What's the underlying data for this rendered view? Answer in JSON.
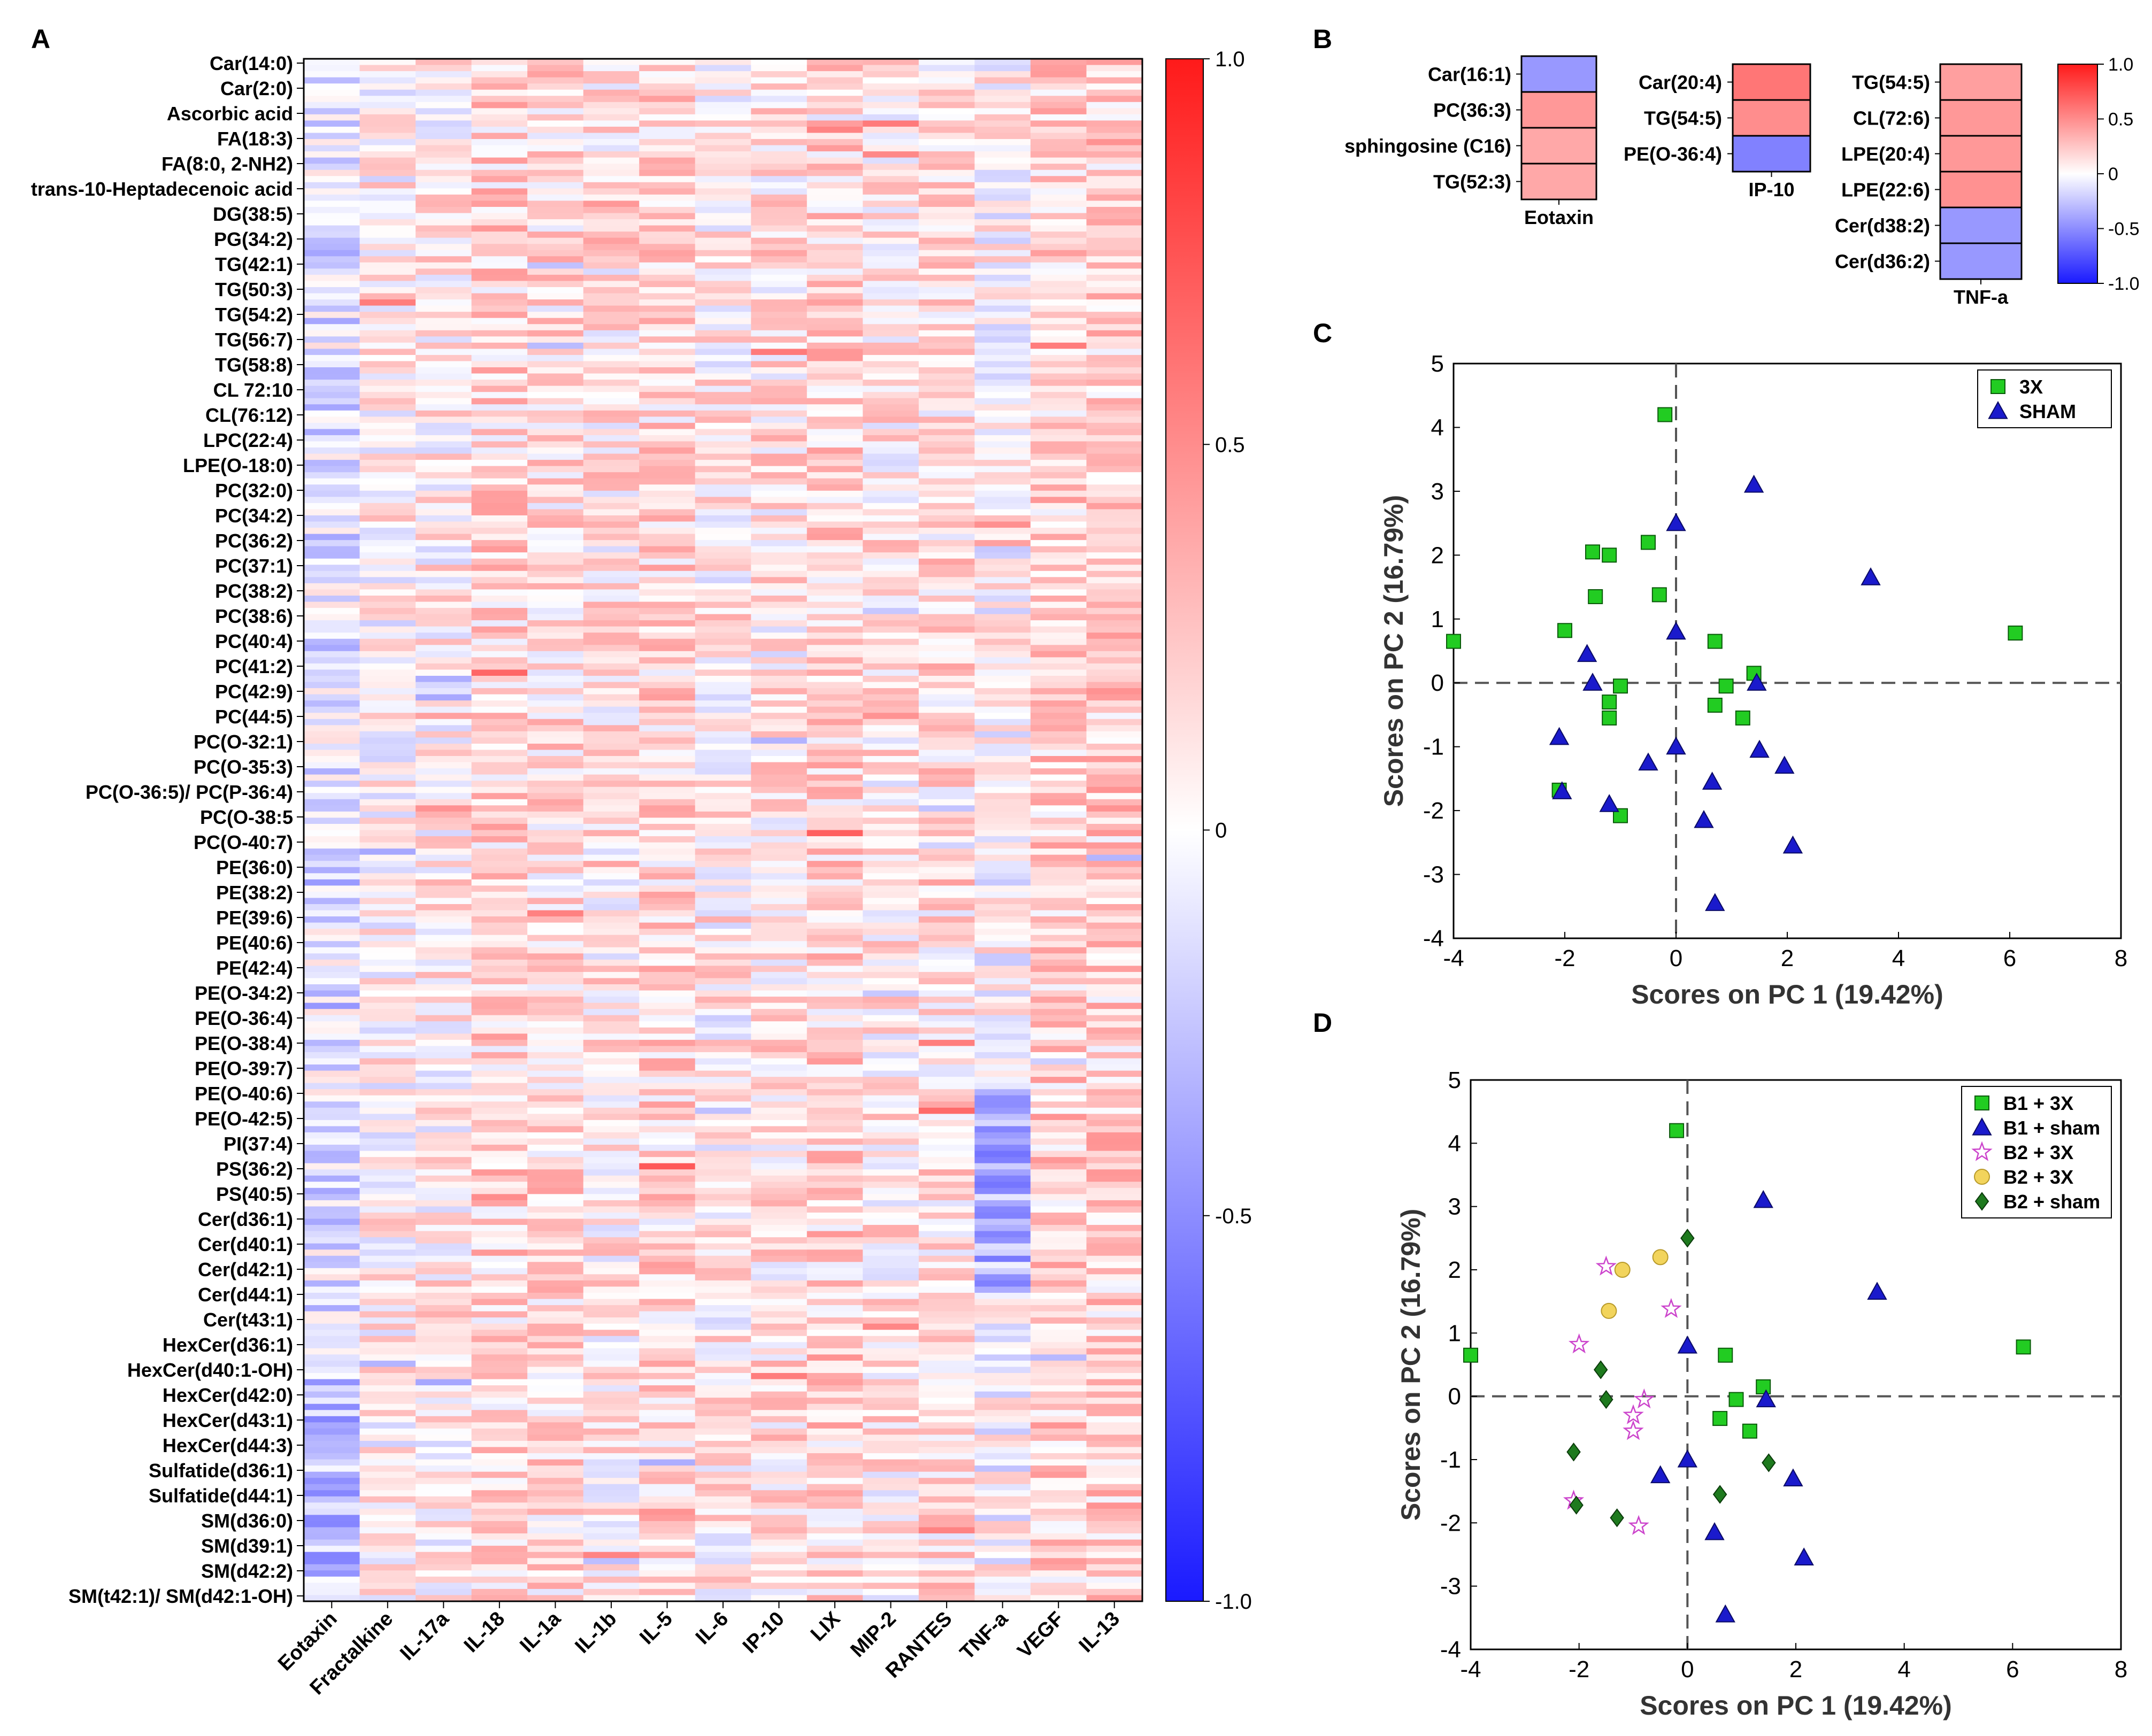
{
  "panels": {
    "A": "A",
    "B": "B",
    "C": "C",
    "D": "D"
  },
  "colors": {
    "neg": "#1a1aff",
    "mid": "#ffffff",
    "pos": "#ff1a1a",
    "green": "#22cc22",
    "blue": "#1a1acc",
    "pink": "#cc44cc",
    "yellow": "#f2d45c",
    "darkgreen": "#1e7a1e"
  },
  "chart_data": [
    {
      "panel": "A",
      "type": "heatmap",
      "title": "",
      "rows_labeled": [
        "Car(14:0)",
        "Car(2:0)",
        "Ascorbic acid",
        "FA(18:3)",
        "FA(8:0, 2-NH2)",
        "trans-10-Heptadecenoic acid",
        "DG(38:5)",
        "PG(34:2)",
        "TG(42:1)",
        "TG(50:3)",
        "TG(54:2)",
        "TG(56:7)",
        "TG(58:8)",
        "CL 72:10",
        "CL(76:12)",
        "LPC(22:4)",
        "LPE(O-18:0)",
        "PC(32:0)",
        "PC(34:2)",
        "PC(36:2)",
        "PC(37:1)",
        "PC(38:2)",
        "PC(38:6)",
        "PC(40:4)",
        "PC(41:2)",
        "PC(42:9)",
        "PC(44:5)",
        "PC(O-32:1)",
        "PC(O-35:3)",
        "PC(O-36:5)/ PC(P-36:4)",
        "PC(O-38:5",
        "PC(O-40:7)",
        "PE(36:0)",
        "PE(38:2)",
        "PE(39:6)",
        "PE(40:6)",
        "PE(42:4)",
        "PE(O-34:2)",
        "PE(O-36:4)",
        "PE(O-38:4)",
        "PE(O-39:7)",
        "PE(O-40:6)",
        "PE(O-42:5)",
        "PI(37:4)",
        "PS(36:2)",
        "PS(40:5)",
        "Cer(d36:1)",
        "Cer(d40:1)",
        "Cer(d42:1)",
        "Cer(d44:1)",
        "Cer(t43:1)",
        "HexCer(d36:1)",
        "HexCer(d40:1-OH)",
        "HexCer(d42:0)",
        "HexCer(d43:1)",
        "HexCer(d44:3)",
        "Sulfatide(d36:1)",
        "Sulfatide(d44:1)",
        "SM(d36:0)",
        "SM(d39:1)",
        "SM(d42:2)",
        "SM(t42:1)/ SM(d42:1-OH)"
      ],
      "columns": [
        "Eotaxin",
        "Fractalkine",
        "IL-17a",
        "IL-18",
        "IL-1a",
        "IL-1b",
        "IL-5",
        "IL-6",
        "IP-10",
        "LIX",
        "MIP-2",
        "RANTES",
        "TNF-a",
        "VEGF",
        "IL-13"
      ],
      "column_mean_bias": [
        -0.12,
        0.06,
        0.08,
        0.18,
        0.14,
        0.1,
        0.16,
        0.08,
        0.12,
        0.18,
        0.1,
        0.14,
        0.02,
        0.2,
        0.2
      ],
      "approx_total_rows": 250,
      "colorbar": {
        "ticks": [
          1.0,
          0.5,
          0,
          -0.5,
          -1.0
        ],
        "tick_labels": [
          "1.0",
          "0.5",
          "0",
          "-0.5",
          "-1.0"
        ],
        "range": [
          -1.0,
          1.0
        ]
      }
    },
    {
      "panel": "B",
      "type": "heatmap",
      "groups": [
        {
          "column": "Eotaxin",
          "rows": [
            "Car(16:1)",
            "PC(36:3)",
            "sphingosine (C16)",
            "TG(52:3)"
          ],
          "values": [
            -0.45,
            0.45,
            0.38,
            0.38
          ]
        },
        {
          "column": "IP-10",
          "rows": [
            "Car(20:4)",
            "TG(54:5)",
            "PE(O-36:4)"
          ],
          "values": [
            0.6,
            0.5,
            -0.55
          ]
        },
        {
          "column": "TNF-a",
          "rows": [
            "TG(54:5)",
            "CL(72:6)",
            "LPE(20:4)",
            "LPE(22:6)",
            "Cer(d38:2)",
            "Cer(d36:2)"
          ],
          "values": [
            0.42,
            0.45,
            0.45,
            0.48,
            -0.45,
            -0.45
          ]
        }
      ],
      "colorbar": {
        "ticks": [
          1.0,
          0.5,
          0,
          -0.5,
          -1.0
        ],
        "tick_labels": [
          "1.0",
          "0.5",
          "0",
          "-0.5",
          "-1.0"
        ],
        "range": [
          -1.0,
          1.0
        ]
      }
    },
    {
      "panel": "C",
      "type": "scatter",
      "xlabel": "Scores on PC 1 (19.42%)",
      "ylabel": "Scores on PC 2 (16.79%)",
      "xlim": [
        -4,
        8
      ],
      "ylim": [
        -4,
        5
      ],
      "xticks": [
        "-4",
        "-2",
        "0",
        "2",
        "4",
        "6",
        "8"
      ],
      "yticks": [
        "5",
        "4",
        "3",
        "2",
        "1",
        "0",
        "-1",
        "-2",
        "-3",
        "-4"
      ],
      "legend_position": "top-right",
      "series": [
        {
          "name": "3X",
          "marker": "square",
          "color": "#22cc22",
          "points": [
            [
              -0.2,
              4.2
            ],
            [
              -1.5,
              2.05
            ],
            [
              -1.2,
              2.0
            ],
            [
              -0.5,
              2.2
            ],
            [
              -1.45,
              1.35
            ],
            [
              -0.3,
              1.38
            ],
            [
              -2.0,
              0.82
            ],
            [
              -4.0,
              0.65
            ],
            [
              0.7,
              0.65
            ],
            [
              6.1,
              0.78
            ],
            [
              -1.0,
              -0.05
            ],
            [
              0.9,
              -0.05
            ],
            [
              1.4,
              0.15
            ],
            [
              -1.2,
              -0.3
            ],
            [
              0.7,
              -0.35
            ],
            [
              1.2,
              -0.55
            ],
            [
              -1.2,
              -0.55
            ],
            [
              -2.1,
              -1.68
            ],
            [
              -1.0,
              -2.08
            ]
          ]
        },
        {
          "name": "SHAM",
          "marker": "triangle",
          "color": "#1a1acc",
          "points": [
            [
              1.4,
              3.1
            ],
            [
              0.0,
              2.5
            ],
            [
              3.5,
              1.65
            ],
            [
              0.0,
              0.8
            ],
            [
              -1.6,
              0.45
            ],
            [
              -1.5,
              0.0
            ],
            [
              1.45,
              0.0
            ],
            [
              -2.1,
              -0.85
            ],
            [
              0.0,
              -1.0
            ],
            [
              -0.5,
              -1.25
            ],
            [
              1.5,
              -1.05
            ],
            [
              1.95,
              -1.3
            ],
            [
              0.65,
              -1.55
            ],
            [
              -2.05,
              -1.7
            ],
            [
              -1.2,
              -1.9
            ],
            [
              0.5,
              -2.15
            ],
            [
              2.1,
              -2.55
            ],
            [
              0.7,
              -3.45
            ]
          ]
        }
      ]
    },
    {
      "panel": "D",
      "type": "scatter",
      "xlabel": "Scores on PC 1 (19.42%)",
      "ylabel": "Scores on PC 2 (16.79%)",
      "xlim": [
        -4,
        8
      ],
      "ylim": [
        -4,
        5
      ],
      "xticks": [
        "-4",
        "-2",
        "0",
        "2",
        "4",
        "6",
        "8"
      ],
      "yticks": [
        "5",
        "4",
        "3",
        "2",
        "1",
        "0",
        "-1",
        "-2",
        "-3",
        "-4"
      ],
      "legend_position": "top-right",
      "series": [
        {
          "name": "B1 + 3X",
          "marker": "square",
          "color": "#22cc22",
          "points": [
            [
              -0.2,
              4.2
            ],
            [
              -4.0,
              0.65
            ],
            [
              0.7,
              0.65
            ],
            [
              6.2,
              0.78
            ],
            [
              1.4,
              0.15
            ],
            [
              0.9,
              -0.05
            ],
            [
              0.6,
              -0.35
            ],
            [
              1.15,
              -0.55
            ]
          ]
        },
        {
          "name": "B1 + sham",
          "marker": "triangle",
          "color": "#1a1acc",
          "points": [
            [
              1.4,
              3.1
            ],
            [
              3.5,
              1.65
            ],
            [
              0.0,
              0.8
            ],
            [
              1.45,
              -0.05
            ],
            [
              0.0,
              -1.0
            ],
            [
              -0.5,
              -1.25
            ],
            [
              1.95,
              -1.3
            ],
            [
              0.5,
              -2.15
            ],
            [
              2.15,
              -2.55
            ],
            [
              0.7,
              -3.45
            ]
          ]
        },
        {
          "name": "B2 + 3X",
          "marker": "star",
          "color": "#cc44cc",
          "points": [
            [
              -1.5,
              2.05
            ],
            [
              -0.3,
              1.38
            ],
            [
              -2.0,
              0.82
            ],
            [
              -0.8,
              -0.05
            ],
            [
              -1.0,
              -0.3
            ],
            [
              -1.0,
              -0.55
            ],
            [
              -2.1,
              -1.65
            ],
            [
              -0.9,
              -2.05
            ]
          ]
        },
        {
          "name": "B2 + 3X",
          "marker": "circle",
          "color": "#f2d45c",
          "points": [
            [
              -1.2,
              2.0
            ],
            [
              -0.5,
              2.2
            ],
            [
              -1.45,
              1.35
            ]
          ]
        },
        {
          "name": "B2 + sham",
          "marker": "diamond",
          "color": "#1e7a1e",
          "points": [
            [
              0.0,
              2.5
            ],
            [
              -1.6,
              0.42
            ],
            [
              -1.5,
              -0.05
            ],
            [
              -2.1,
              -0.88
            ],
            [
              1.5,
              -1.05
            ],
            [
              0.6,
              -1.55
            ],
            [
              -2.05,
              -1.72
            ],
            [
              -1.3,
              -1.92
            ]
          ]
        }
      ]
    }
  ]
}
